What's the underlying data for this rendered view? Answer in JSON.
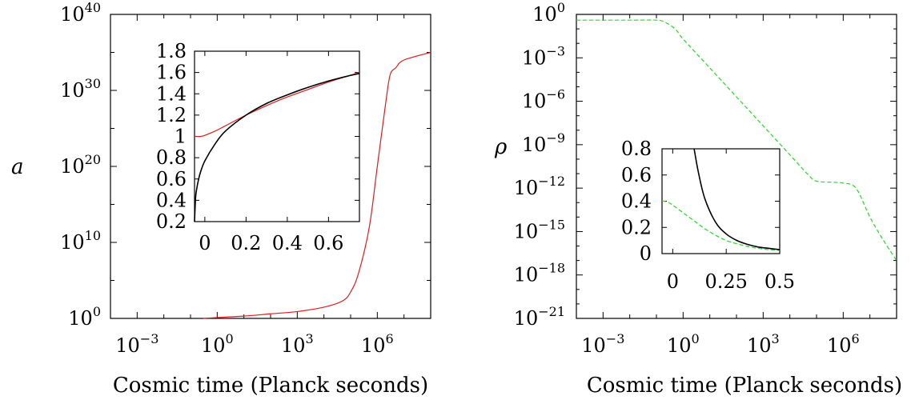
{
  "colors": {
    "red_curve": "#e41a1c",
    "green_curve": "#22dd22",
    "black_curve": "#000000",
    "axis": "#000000"
  },
  "chart_data": [
    {
      "type": "line",
      "panel": "left-main",
      "xlabel": "Cosmic time (Planck seconds)",
      "ylabel": "a",
      "xscale": "log",
      "yscale": "log",
      "xlim": [
        0.0001,
        100000000
      ],
      "ylim": [
        1,
        1e+40
      ],
      "xticks": [
        {
          "base": "10",
          "exp": "−3",
          "value": 0.001
        },
        {
          "base": "10",
          "exp": "0",
          "value": 1
        },
        {
          "base": "10",
          "exp": "3",
          "value": 1000
        },
        {
          "base": "10",
          "exp": "6",
          "value": 1000000
        }
      ],
      "yticks": [
        {
          "base": "10",
          "exp": "0",
          "value": 1
        },
        {
          "base": "10",
          "exp": "10",
          "value": 10000000000.0
        },
        {
          "base": "10",
          "exp": "20",
          "value": 1e+20
        },
        {
          "base": "10",
          "exp": "30",
          "value": 1e+30
        },
        {
          "base": "10",
          "exp": "40",
          "value": 1e+40
        }
      ],
      "series": [
        {
          "color": "red",
          "style": "solid",
          "x": [
            0.3,
            1,
            10,
            100,
            1000,
            10000,
            50000,
            100000,
            200000,
            500000,
            1000000,
            2000000,
            3000000,
            5000000,
            10000000,
            100000000
          ],
          "y": [
            1,
            1.3,
            2,
            4,
            8,
            30,
            200,
            3000,
            1000000.0,
            1000000000000.0,
            1e+20,
            1e+28,
            1e+32,
            1e+33,
            1e+34,
            1e+35
          ]
        }
      ]
    },
    {
      "type": "line",
      "panel": "left-inset",
      "xlim": [
        -0.05,
        0.75
      ],
      "ylim": [
        0.2,
        1.8
      ],
      "xticks": [
        "0",
        "0.2",
        "0.4",
        "0.6"
      ],
      "xtick_values": [
        0,
        0.2,
        0.4,
        0.6
      ],
      "yticks": [
        "0.2",
        "0.4",
        "0.6",
        "0.8",
        "1",
        "1.2",
        "1.4",
        "1.6",
        "1.8"
      ],
      "ytick_values": [
        0.2,
        0.4,
        0.6,
        0.8,
        1,
        1.2,
        1.4,
        1.6,
        1.8
      ],
      "series": [
        {
          "color": "red",
          "style": "solid",
          "x": [
            -0.05,
            -0.04,
            -0.02,
            0,
            0.05,
            0.1,
            0.2,
            0.3,
            0.4,
            0.5,
            0.6,
            0.7,
            0.75
          ],
          "y": [
            1.0,
            1.0,
            1.0,
            1.01,
            1.05,
            1.1,
            1.2,
            1.29,
            1.37,
            1.44,
            1.51,
            1.57,
            1.6
          ]
        },
        {
          "color": "black",
          "style": "solid",
          "x": [
            -0.05,
            -0.045,
            -0.04,
            -0.03,
            -0.02,
            0,
            0.05,
            0.1,
            0.2,
            0.3,
            0.4,
            0.5,
            0.6,
            0.7,
            0.75
          ],
          "y": [
            0.2,
            0.42,
            0.5,
            0.6,
            0.67,
            0.77,
            0.93,
            1.05,
            1.2,
            1.31,
            1.39,
            1.46,
            1.52,
            1.57,
            1.59
          ]
        }
      ]
    },
    {
      "type": "line",
      "panel": "right-main",
      "xlabel": "Cosmic time (Planck seconds)",
      "ylabel": "ρ",
      "xscale": "log",
      "yscale": "log",
      "xlim": [
        0.0001,
        100000000
      ],
      "ylim": [
        1e-21,
        1
      ],
      "xticks": [
        {
          "base": "10",
          "exp": "−3",
          "value": 0.001
        },
        {
          "base": "10",
          "exp": "0",
          "value": 1
        },
        {
          "base": "10",
          "exp": "3",
          "value": 1000
        },
        {
          "base": "10",
          "exp": "6",
          "value": 1000000
        }
      ],
      "yticks": [
        {
          "base": "10",
          "exp": "0",
          "value": 1
        },
        {
          "base": "10",
          "exp": "−3",
          "value": 0.001
        },
        {
          "base": "10",
          "exp": "−6",
          "value": 1e-06
        },
        {
          "base": "10",
          "exp": "−9",
          "value": 1e-09
        },
        {
          "base": "10",
          "exp": "−12",
          "value": 1e-12
        },
        {
          "base": "10",
          "exp": "−15",
          "value": 1e-15
        },
        {
          "base": "10",
          "exp": "−18",
          "value": 1e-18
        },
        {
          "base": "10",
          "exp": "−21",
          "value": 1e-21
        }
      ],
      "series": [
        {
          "color": "green",
          "style": "dashed",
          "x": [
            0.0001,
            0.01,
            0.1,
            0.2,
            0.5,
            1,
            10,
            100,
            1000,
            10000,
            50000,
            100000,
            500000,
            1000000,
            3000000,
            10000000,
            30000000,
            100000000
          ],
          "y": [
            0.4,
            0.4,
            0.4,
            0.3,
            0.1,
            0.02,
            0.0002,
            2e-06,
            2e-08,
            2e-10,
            8e-12,
            3e-12,
            2.5e-12,
            2.2e-12,
            1e-12,
            1e-14,
            3e-16,
            1e-17
          ]
        }
      ]
    },
    {
      "type": "line",
      "panel": "right-inset",
      "xlim": [
        -0.05,
        0.5
      ],
      "ylim": [
        0,
        0.8
      ],
      "xticks": [
        "0",
        "0.25",
        "0.5"
      ],
      "xtick_values": [
        0,
        0.25,
        0.5
      ],
      "yticks": [
        "0",
        "0.2",
        "0.4",
        "0.6",
        "0.8"
      ],
      "ytick_values": [
        0,
        0.2,
        0.4,
        0.6,
        0.8
      ],
      "series": [
        {
          "color": "green",
          "style": "dashed",
          "x": [
            -0.05,
            -0.04,
            -0.02,
            0,
            0.05,
            0.1,
            0.15,
            0.2,
            0.25,
            0.3,
            0.35,
            0.4,
            0.45,
            0.5
          ],
          "y": [
            0.4,
            0.4,
            0.39,
            0.37,
            0.31,
            0.25,
            0.19,
            0.14,
            0.1,
            0.075,
            0.055,
            0.04,
            0.03,
            0.025
          ]
        },
        {
          "color": "black",
          "style": "solid",
          "x": [
            0.1,
            0.12,
            0.15,
            0.2,
            0.25,
            0.3,
            0.35,
            0.4,
            0.45,
            0.5
          ],
          "y": [
            0.8,
            0.62,
            0.42,
            0.24,
            0.15,
            0.1,
            0.07,
            0.05,
            0.04,
            0.03
          ]
        }
      ]
    }
  ]
}
